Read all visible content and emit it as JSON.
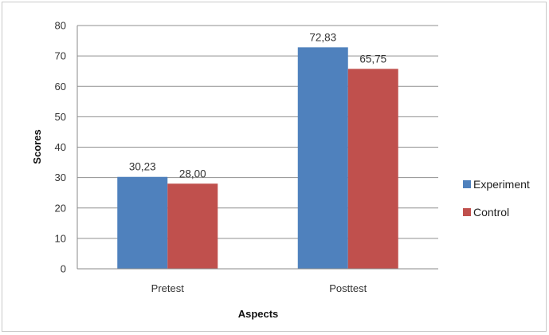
{
  "chart_data": {
    "type": "bar",
    "categories": [
      "Pretest",
      "Posttest"
    ],
    "series": [
      {
        "name": "Experiment",
        "values": [
          30.23,
          72.83
        ],
        "labels": [
          "30,23",
          "72,83"
        ],
        "color": "#4f81bd"
      },
      {
        "name": "Control",
        "values": [
          28.0,
          65.75
        ],
        "labels": [
          "28,00",
          "65,75"
        ],
        "color": "#c0504d"
      }
    ],
    "title": "",
    "xlabel": "Aspects",
    "ylabel": "Scores",
    "ylim": [
      0,
      80
    ],
    "yticks": [
      0,
      10,
      20,
      30,
      40,
      50,
      60,
      70,
      80
    ],
    "grid": true,
    "legend_position": "right"
  }
}
